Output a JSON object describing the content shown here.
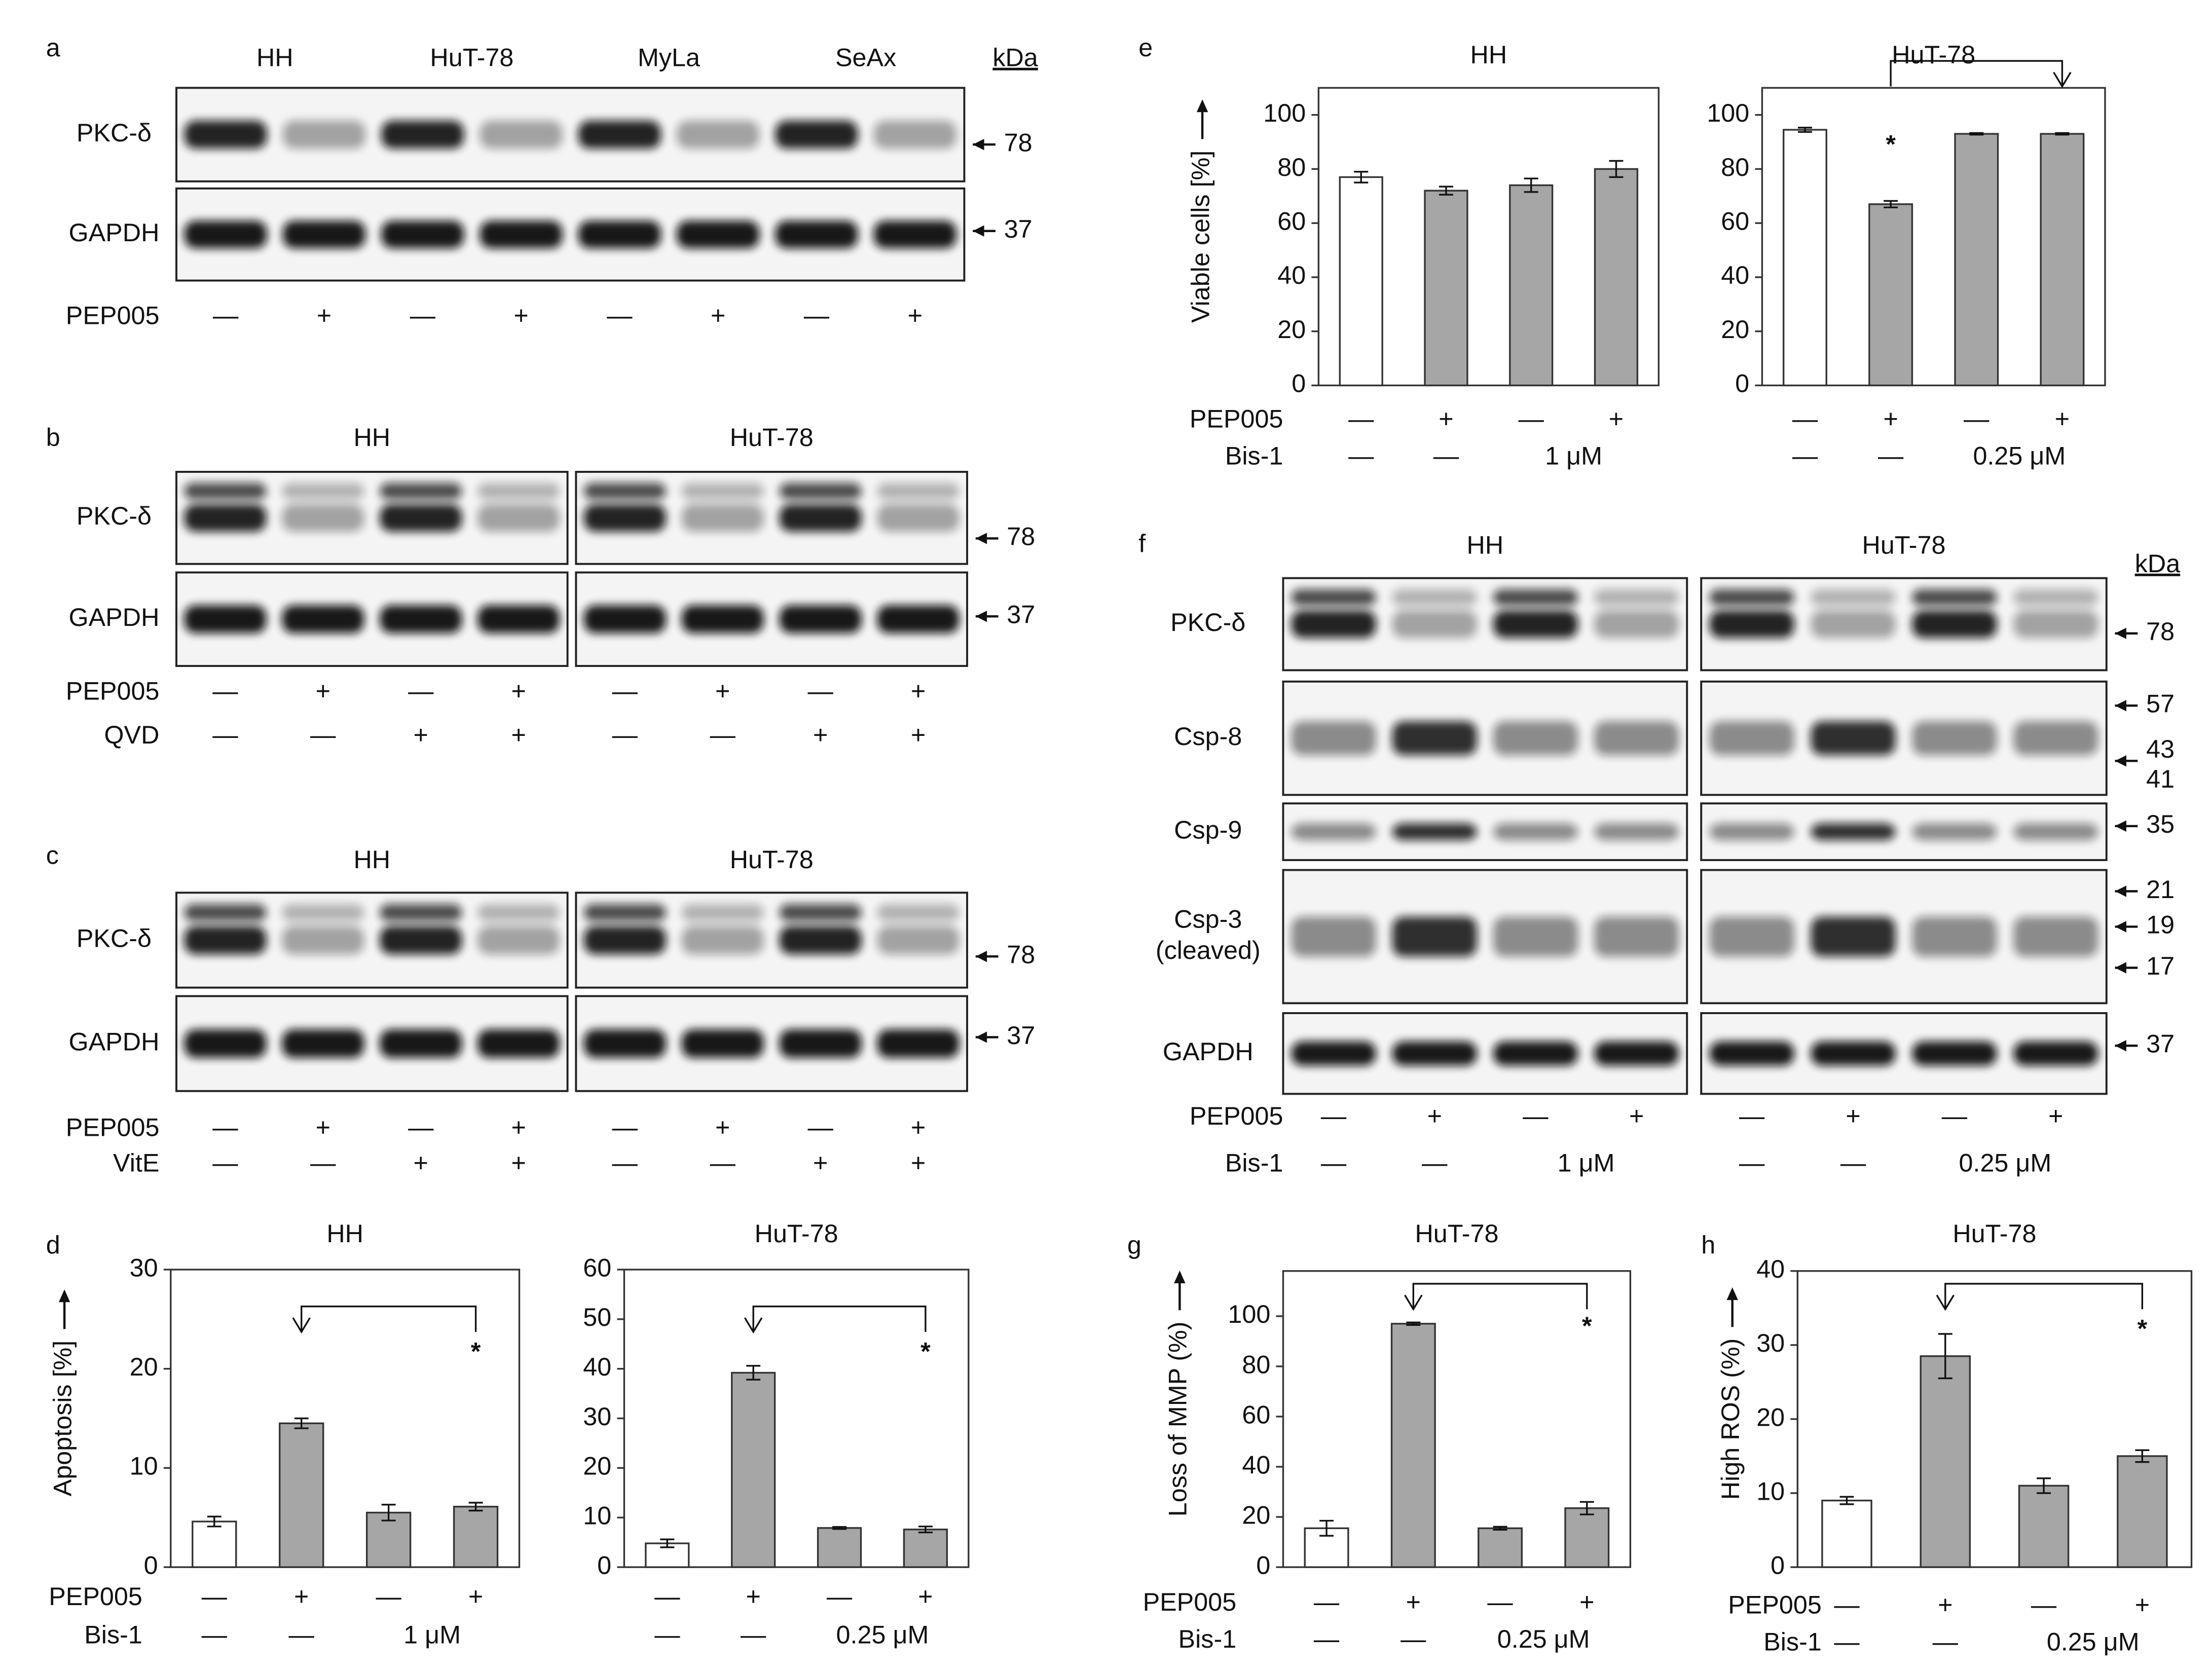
{
  "panels": [
    "a",
    "b",
    "c",
    "d",
    "e",
    "f",
    "g",
    "h"
  ],
  "blots": [
    {
      "groups": [
        "HH",
        "HuT-78",
        "MyLa",
        "SeAx"
      ],
      "unit": "kDa",
      "rows": [
        {
          "label": [
            "PKC-δ"
          ],
          "markers": [
            78
          ]
        },
        {
          "label": [
            "GAPDH"
          ],
          "markers": [
            37
          ]
        }
      ],
      "treatments": [
        {
          "name": "PEP005",
          "labels": [
            [
              "—",
              "+"
            ],
            [
              "—",
              "+"
            ],
            [
              "—",
              "+"
            ],
            [
              "—",
              "+"
            ]
          ]
        }
      ]
    },
    {
      "groups": [
        "HH",
        "HuT-78"
      ],
      "rows": [
        {
          "label": [
            "PKC-δ"
          ],
          "markers": [
            78
          ]
        },
        {
          "label": [
            "GAPDH"
          ],
          "markers": [
            37
          ]
        }
      ],
      "treatments": [
        {
          "name": "PEP005",
          "labels": [
            [
              "—",
              "+",
              "—",
              "+"
            ],
            [
              "—",
              "+",
              "—",
              "+"
            ]
          ]
        },
        {
          "name": "QVD",
          "labels": [
            [
              "—",
              "—",
              "+",
              "+"
            ],
            [
              "—",
              "—",
              "+",
              "+"
            ]
          ]
        }
      ]
    },
    {
      "groups": [
        "HH",
        "HuT-78"
      ],
      "rows": [
        {
          "label": [
            "PKC-δ"
          ],
          "markers": [
            78
          ]
        },
        {
          "label": [
            "GAPDH"
          ],
          "markers": [
            37
          ]
        }
      ],
      "treatments": [
        {
          "name": "PEP005",
          "labels": [
            [
              "—",
              "+",
              "—",
              "+"
            ],
            [
              "—",
              "+",
              "—",
              "+"
            ]
          ]
        },
        {
          "name": "VitE",
          "labels": [
            [
              "—",
              "—",
              "+",
              "+"
            ],
            [
              "—",
              "—",
              "+",
              "+"
            ]
          ]
        }
      ]
    },
    {
      "groups": [
        "HH",
        "HuT-78"
      ],
      "unit": "kDa",
      "rows": [
        {
          "label": [
            "PKC-δ"
          ],
          "markers": [
            78
          ]
        },
        {
          "label": [
            "Csp-8"
          ],
          "markers": [
            57,
            43,
            41
          ]
        },
        {
          "label": [
            "Csp-9"
          ],
          "markers": [
            35
          ]
        },
        {
          "label": [
            "Csp-3",
            "(cleaved)"
          ],
          "markers": [
            21,
            19,
            17
          ]
        },
        {
          "label": [
            "GAPDH"
          ],
          "markers": [
            37
          ]
        }
      ],
      "treatments": [
        {
          "name": "PEP005",
          "labels": [
            [
              "—",
              "+",
              "—",
              "+"
            ],
            [
              "—",
              "+",
              "—",
              "+"
            ]
          ]
        },
        {
          "name": "Bis-1",
          "labels": [
            [
              "—",
              "—",
              "1 μM"
            ],
            [
              "—",
              "—",
              "0.25 μM"
            ]
          ]
        }
      ]
    }
  ],
  "chart_data": [
    {
      "type": "bar",
      "title": "HH",
      "y_label": "Apoptosis [%]",
      "values": [
        4.6,
        14.5,
        5.5,
        6.1
      ],
      "errors": [
        0.5,
        0.5,
        0.8,
        0.4
      ],
      "colors": [
        "#ffffff",
        "#a6a6a6",
        "#a6a6a6",
        "#a6a6a6"
      ],
      "ylim": [
        0,
        30
      ],
      "yticks": [
        0,
        10,
        20,
        30
      ],
      "annotation": "*",
      "treatments": [
        {
          "name": "PEP005",
          "labels": [
            "—",
            "+",
            "—",
            "+"
          ]
        },
        {
          "name": "Bis-1",
          "labels": [
            "—",
            "—",
            "1 μM"
          ]
        }
      ]
    },
    {
      "type": "bar",
      "title": "HuT-78",
      "values": [
        4.8,
        39.2,
        7.9,
        7.6
      ],
      "errors": [
        0.8,
        1.4,
        0.2,
        0.6
      ],
      "colors": [
        "#ffffff",
        "#a6a6a6",
        "#a6a6a6",
        "#a6a6a6"
      ],
      "ylim": [
        0,
        60
      ],
      "yticks": [
        0,
        10,
        20,
        30,
        40,
        50,
        60
      ],
      "annotation": "*",
      "treatments": [
        {
          "labels": [
            "—",
            "+",
            "—",
            "+"
          ]
        },
        {
          "labels": [
            "—",
            "—",
            "0.25 μM"
          ]
        }
      ]
    },
    {
      "type": "bar",
      "title": "HH",
      "y_label": "Viable cells [%]",
      "values": [
        77,
        72,
        74,
        80
      ],
      "errors": [
        2,
        1.5,
        2.5,
        3
      ],
      "colors": [
        "#ffffff",
        "#a6a6a6",
        "#a6a6a6",
        "#a6a6a6"
      ],
      "ylim": [
        0,
        110
      ],
      "yticks": [
        0,
        20,
        40,
        60,
        80,
        100
      ],
      "treatments": [
        {
          "name": "PEP005",
          "labels": [
            "—",
            "+",
            "—",
            "+"
          ]
        },
        {
          "name": "Bis-1",
          "labels": [
            "—",
            "—",
            "1 μM"
          ]
        }
      ]
    },
    {
      "type": "bar",
      "title": "HuT-78",
      "values": [
        94.5,
        67,
        93,
        93
      ],
      "errors": [
        0.8,
        1.2,
        0.3,
        0.3
      ],
      "colors": [
        "#ffffff",
        "#a6a6a6",
        "#a6a6a6",
        "#a6a6a6"
      ],
      "ylim": [
        0,
        110
      ],
      "yticks": [
        0,
        20,
        40,
        60,
        80,
        100
      ],
      "annotation": "*",
      "treatments": [
        {
          "labels": [
            "—",
            "+",
            "—",
            "+"
          ]
        },
        {
          "labels": [
            "—",
            "—",
            "0.25 μM"
          ]
        }
      ]
    },
    {
      "type": "bar",
      "title": "HuT-78",
      "y_label": "Loss of MMP (%)",
      "values": [
        15.5,
        97,
        15.5,
        23.5
      ],
      "errors": [
        3,
        0.5,
        0.6,
        2.5
      ],
      "colors": [
        "#ffffff",
        "#a6a6a6",
        "#a6a6a6",
        "#a6a6a6"
      ],
      "ylim": [
        0,
        118
      ],
      "yticks": [
        0,
        20,
        40,
        60,
        80,
        100
      ],
      "annotation": "*",
      "treatments": [
        {
          "name": "PEP005",
          "labels": [
            "—",
            "+",
            "—",
            "+"
          ]
        },
        {
          "name": "Bis-1",
          "labels": [
            "—",
            "—",
            "0.25 μM"
          ]
        }
      ]
    },
    {
      "type": "bar",
      "title": "HuT-78",
      "y_label": "High ROS (%)",
      "values": [
        9,
        28.5,
        11,
        15
      ],
      "errors": [
        0.5,
        3,
        1,
        0.8
      ],
      "colors": [
        "#ffffff",
        "#a6a6a6",
        "#a6a6a6",
        "#a6a6a6"
      ],
      "ylim": [
        0,
        40
      ],
      "yticks": [
        0,
        10,
        20,
        30,
        40
      ],
      "annotation": "*",
      "treatments": [
        {
          "name": "PEP005",
          "labels": [
            "—",
            "+",
            "—",
            "+"
          ]
        },
        {
          "name": "Bis-1",
          "labels": [
            "—",
            "—",
            "0.25 μM"
          ]
        }
      ]
    }
  ]
}
